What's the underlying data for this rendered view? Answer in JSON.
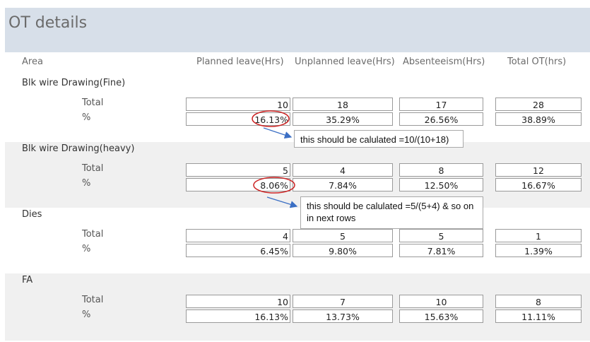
{
  "title": "OT details",
  "headers": [
    "Area",
    "Planned leave(Hrs)",
    "Unplanned leave(Hrs)",
    "Absenteeism(Hrs)",
    "Total OT(hrs)"
  ],
  "row_labels": {
    "total": "Total",
    "pct": "%"
  },
  "sections": [
    {
      "name": "Blk wire Drawing(Fine)",
      "total": [
        "10",
        "18",
        "17",
        "28"
      ],
      "pct": [
        "16.13%",
        "35.29%",
        "26.56%",
        "38.89%"
      ]
    },
    {
      "name": "Blk wire Drawing(heavy)",
      "total": [
        "5",
        "4",
        "8",
        "12"
      ],
      "pct": [
        "8.06%",
        "7.84%",
        "12.50%",
        "16.67%"
      ]
    },
    {
      "name": "Dies",
      "total": [
        "4",
        "5",
        "5",
        "1"
      ],
      "pct": [
        "6.45%",
        "9.80%",
        "7.81%",
        "1.39%"
      ]
    },
    {
      "name": "FA",
      "total": [
        "10",
        "7",
        "10",
        "8"
      ],
      "pct": [
        "16.13%",
        "13.73%",
        "15.63%",
        "11.11%"
      ]
    }
  ],
  "callouts": [
    "this should be calulated =10/(10+18)",
    "this should be calulated =5/(5+4) & so on in next rows"
  ],
  "colors": {
    "title_bar": "#d7dfe9",
    "band": "#f0f0f0",
    "circle": "#cc2222",
    "arrow": "#3b6fc4"
  }
}
